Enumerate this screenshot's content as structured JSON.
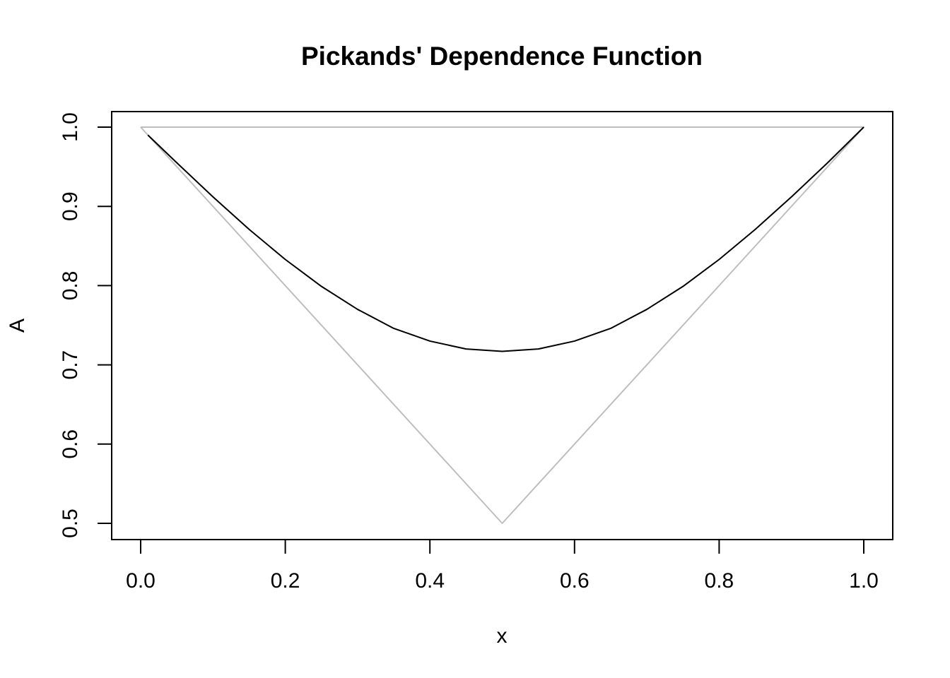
{
  "chart_data": {
    "type": "line",
    "title": "Pickands' Dependence Function",
    "xlabel": "x",
    "ylabel": "A",
    "xlim": [
      0.0,
      1.0
    ],
    "ylim": [
      0.5,
      1.0
    ],
    "x_ticks": [
      "0.0",
      "0.2",
      "0.4",
      "0.6",
      "0.8",
      "1.0"
    ],
    "y_ticks": [
      "0.5",
      "0.6",
      "0.7",
      "0.8",
      "0.9",
      "1.0"
    ],
    "grid": false,
    "legend": "none",
    "series": [
      {
        "color": "#000000",
        "x": [
          0.01,
          0.05,
          0.1,
          0.15,
          0.2,
          0.25,
          0.3,
          0.35,
          0.4,
          0.45,
          0.5,
          0.55,
          0.6,
          0.65,
          0.7,
          0.75,
          0.8,
          0.85,
          0.9,
          0.95,
          1.0
        ],
        "y": [
          0.99,
          0.955,
          0.912,
          0.871,
          0.833,
          0.799,
          0.77,
          0.746,
          0.73,
          0.72,
          0.717,
          0.72,
          0.73,
          0.746,
          0.77,
          0.799,
          0.833,
          0.871,
          0.912,
          0.955,
          1.0
        ]
      },
      {
        "color": "#bebebe",
        "x": [
          0.0,
          0.5,
          1.0,
          0.0
        ],
        "y": [
          1.0,
          0.5,
          1.0,
          1.0
        ]
      }
    ]
  }
}
